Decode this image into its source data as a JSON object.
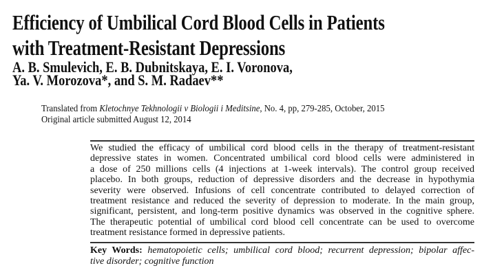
{
  "title_lines": [
    "Efficiency of Umbilical Cord Blood Cells in Patients",
    "with Treatment-Resistant Depressions"
  ],
  "author_lines": [
    "A. B. Smulevich, E. B. Dubnitskaya, E. I. Voronova,",
    "Ya. V. Morozova*, and S. M. Radaev**"
  ],
  "translated": {
    "prefix": "Translated from ",
    "journal": "Kletochnye Tekhnologii v Biologii i Meditsine",
    "suffix": ", No. 4, pp, 279-285, October, 2015"
  },
  "submitted": "Original article submitted August 12, 2014",
  "abstract_lines": [
    "We studied the efficacy of umbilical cord blood cells in the therapy of treatment-resistant",
    "depressive states in women. Concentrated umbilical cord blood cells were administered in",
    "a dose of 250 millions cells (4 injections at 1-week intervals). The control group received",
    "placebo. In both groups, reduction of depressive disorders and the decrease in hypothymia",
    "severity were observed. Infusions of cell concentrate contributed to delayed correction of",
    "treatment resistance and reduced the severity of depression to moderate. In the main group,",
    "significant, persistent, and long-term positive dynamics was observed in the cognitive sphere.",
    "The therapeutic potential of umbilical cord blood cell concentrate can be used to overcome",
    "treatment resistance formed in depressive patients."
  ],
  "keywords": {
    "label": "Key Words:",
    "line1": " hematopoietic cells; umbilical cord blood; recurrent depression; bipolar affec-",
    "line2": "tive disorder; cognitive function"
  }
}
